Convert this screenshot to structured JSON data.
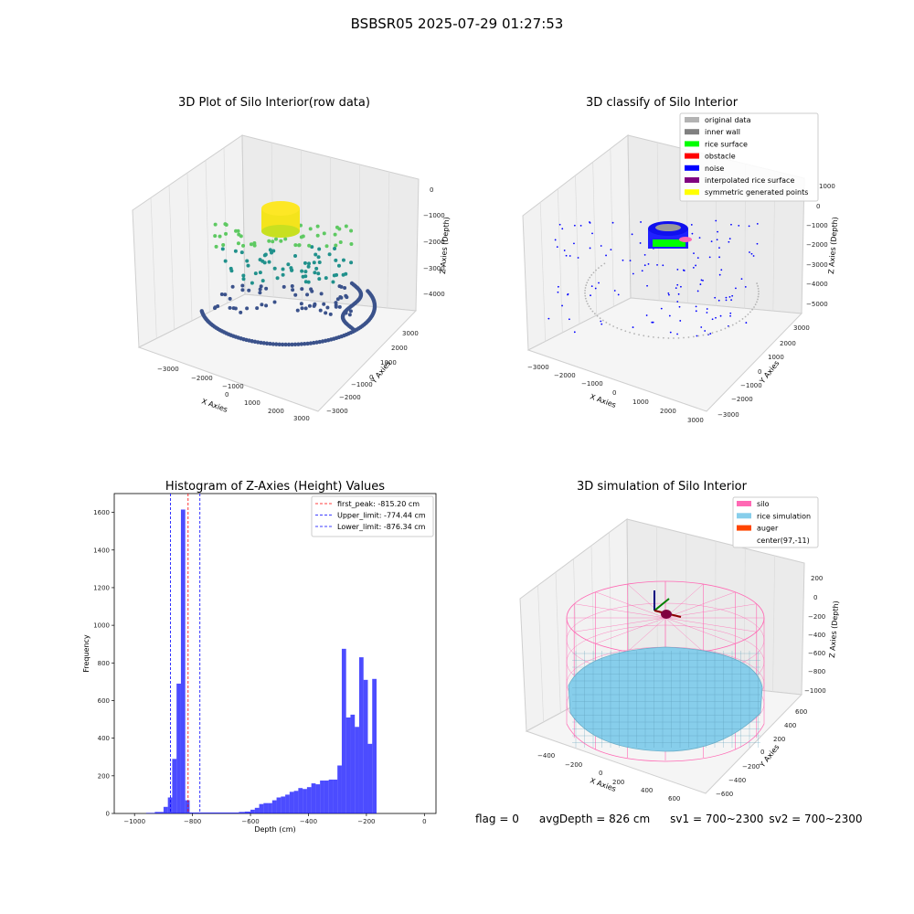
{
  "suptitle": "BSBSR05 2025-07-29 01:27:53",
  "footer": {
    "flag": "flag = 0",
    "avg_depth": "avgDepth = 826 cm",
    "sv1": "sv1 = 700~2300",
    "sv2": "sv2 = 700~2300"
  },
  "chart_data": [
    {
      "type": "scatter3d",
      "title": "3D Plot of Silo Interior(row data)",
      "xlabel": "X Axies",
      "ylabel": "Y Axies",
      "zlabel": "Z Axies (Depth)",
      "xticks": [
        "−3000",
        "−2000",
        "−1000",
        "0",
        "1000",
        "2000",
        "3000"
      ],
      "yticks": [
        "3000",
        "2000",
        "1000",
        "0",
        "−1000",
        "−2000",
        "−3000"
      ],
      "zticks": [
        "0",
        "−1000",
        "−2000",
        "−3000",
        "−4000"
      ],
      "colormap": [
        "#440154",
        "#3b528b",
        "#21918c",
        "#5ec962",
        "#fde725"
      ]
    },
    {
      "type": "scatter3d",
      "title": "3D classify of Silo Interior",
      "xlabel": "X Axies",
      "ylabel": "Y Axies",
      "zlabel": "Z Axies (Depth)",
      "xticks": [
        "−3000",
        "−2000",
        "−1000",
        "0",
        "1000",
        "2000",
        "3000"
      ],
      "yticks": [
        "3000",
        "2000",
        "1000",
        "0",
        "−1000",
        "−2000",
        "−3000"
      ],
      "zticks": [
        "1000",
        "0",
        "−1000",
        "−2000",
        "−3000",
        "−4000",
        "−5000"
      ],
      "legend": [
        {
          "label": "original data",
          "color": "#b3b3b3"
        },
        {
          "label": "inner wall",
          "color": "#808080"
        },
        {
          "label": "rice surface",
          "color": "#00ff00"
        },
        {
          "label": "obstacle",
          "color": "#ff0000"
        },
        {
          "label": "noise",
          "color": "#0000ff"
        },
        {
          "label": "interpolated rice surface",
          "color": "#800080"
        },
        {
          "label": "symmetric generated points",
          "color": "#ffff00"
        }
      ],
      "legend_location": "top-right"
    },
    {
      "type": "histogram",
      "title": "Histogram of Z-Axies (Height) Values",
      "xlabel": "Depth (cm)",
      "ylabel": "Frequency",
      "xlim": [
        -1070,
        40
      ],
      "ylim": [
        0,
        1700
      ],
      "xticks": [
        -1000,
        -800,
        -600,
        -400,
        -200,
        0
      ],
      "yticks": [
        0,
        200,
        400,
        600,
        800,
        1000,
        1200,
        1400,
        1600
      ],
      "bar_color": "#0000ff",
      "bins": [
        {
          "x0": -1070,
          "x1": -1060,
          "value": 0
        },
        {
          "x0": -960,
          "x1": -930,
          "value": 3
        },
        {
          "x0": -930,
          "x1": -900,
          "value": 8
        },
        {
          "x0": -900,
          "x1": -885,
          "value": 35
        },
        {
          "x0": -885,
          "x1": -870,
          "value": 85
        },
        {
          "x0": -870,
          "x1": -855,
          "value": 290
        },
        {
          "x0": -855,
          "x1": -840,
          "value": 690
        },
        {
          "x0": -840,
          "x1": -825,
          "value": 1615
        },
        {
          "x0": -825,
          "x1": -810,
          "value": 70
        },
        {
          "x0": -810,
          "x1": -795,
          "value": 5
        },
        {
          "x0": -795,
          "x1": -640,
          "value": 5
        },
        {
          "x0": -640,
          "x1": -620,
          "value": 8
        },
        {
          "x0": -620,
          "x1": -600,
          "value": 10
        },
        {
          "x0": -600,
          "x1": -585,
          "value": 20
        },
        {
          "x0": -585,
          "x1": -570,
          "value": 30
        },
        {
          "x0": -570,
          "x1": -555,
          "value": 50
        },
        {
          "x0": -555,
          "x1": -540,
          "value": 55
        },
        {
          "x0": -540,
          "x1": -525,
          "value": 55
        },
        {
          "x0": -525,
          "x1": -510,
          "value": 70
        },
        {
          "x0": -510,
          "x1": -495,
          "value": 85
        },
        {
          "x0": -495,
          "x1": -480,
          "value": 90
        },
        {
          "x0": -480,
          "x1": -465,
          "value": 100
        },
        {
          "x0": -465,
          "x1": -450,
          "value": 115
        },
        {
          "x0": -450,
          "x1": -435,
          "value": 120
        },
        {
          "x0": -435,
          "x1": -420,
          "value": 135
        },
        {
          "x0": -420,
          "x1": -405,
          "value": 130
        },
        {
          "x0": -405,
          "x1": -390,
          "value": 140
        },
        {
          "x0": -390,
          "x1": -375,
          "value": 160
        },
        {
          "x0": -375,
          "x1": -360,
          "value": 155
        },
        {
          "x0": -360,
          "x1": -345,
          "value": 175
        },
        {
          "x0": -345,
          "x1": -330,
          "value": 175
        },
        {
          "x0": -330,
          "x1": -315,
          "value": 180
        },
        {
          "x0": -315,
          "x1": -300,
          "value": 180
        },
        {
          "x0": -300,
          "x1": -285,
          "value": 255
        },
        {
          "x0": -285,
          "x1": -270,
          "value": 875
        },
        {
          "x0": -270,
          "x1": -255,
          "value": 510
        },
        {
          "x0": -255,
          "x1": -240,
          "value": 525
        },
        {
          "x0": -240,
          "x1": -225,
          "value": 460
        },
        {
          "x0": -225,
          "x1": -210,
          "value": 830
        },
        {
          "x0": -210,
          "x1": -195,
          "value": 710
        },
        {
          "x0": -195,
          "x1": -180,
          "value": 370
        },
        {
          "x0": -180,
          "x1": -165,
          "value": 715
        }
      ],
      "vlines": [
        {
          "label": "first_peak: -815.20 cm",
          "value": -815.2,
          "color": "#ff0000"
        },
        {
          "label": "Upper_limit: -774.44 cm",
          "value": -774.44,
          "color": "#0000ff"
        },
        {
          "label": "Lower_limit: -876.34 cm",
          "value": -876.34,
          "color": "#0000ff"
        }
      ],
      "legend_location": "top-right"
    },
    {
      "type": "surface3d",
      "title": "3D simulation of Silo Interior",
      "xlabel": "X Axies",
      "ylabel": "Y Axies",
      "zlabel": "Z Axies (Depth)",
      "xticks": [
        "−400",
        "−200",
        "0",
        "200",
        "400",
        "600"
      ],
      "yticks": [
        "600",
        "400",
        "200",
        "0",
        "−200",
        "−400",
        "−600"
      ],
      "zticks": [
        "200",
        "0",
        "−200",
        "−400",
        "−600",
        "−800",
        "−1000"
      ],
      "legend": [
        {
          "label": "silo",
          "color": "#ff69b4"
        },
        {
          "label": "rice simulation",
          "color": "#87ceeb"
        },
        {
          "label": "auger",
          "color": "#ff4500"
        },
        {
          "label": "center(97,-11)",
          "color": ""
        }
      ],
      "legend_location": "top-right"
    }
  ]
}
